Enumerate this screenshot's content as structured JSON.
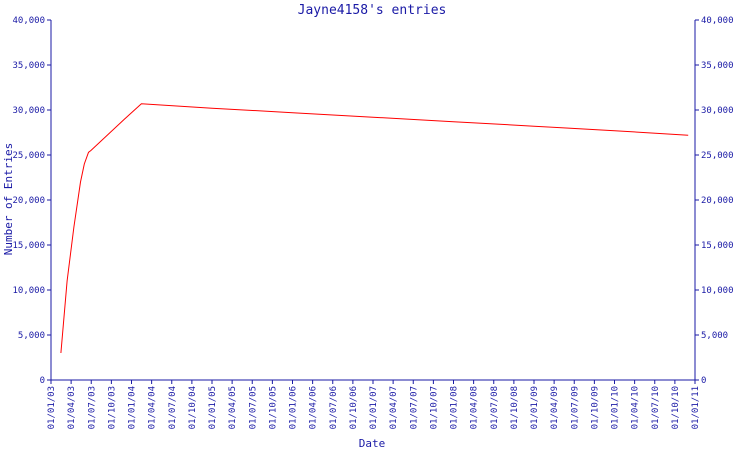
{
  "chart_data": {
    "type": "line",
    "title": "Jayne4158's entries",
    "xlabel": "Date",
    "ylabel": "Number of Entries",
    "ylim": [
      0,
      40000
    ],
    "y_ticks": [
      "0",
      "5,000",
      "10,000",
      "15,000",
      "20,000",
      "25,000",
      "30,000",
      "35,000",
      "40,000"
    ],
    "x_ticks": [
      "01/01/03",
      "01/04/03",
      "01/07/03",
      "01/10/03",
      "01/01/04",
      "01/04/04",
      "01/07/04",
      "01/10/04",
      "01/01/05",
      "01/04/05",
      "01/07/05",
      "01/10/05",
      "01/01/06",
      "01/04/06",
      "01/07/06",
      "01/10/06",
      "01/01/07",
      "01/04/07",
      "01/07/07",
      "01/10/07",
      "01/01/08",
      "01/04/08",
      "01/07/08",
      "01/10/08",
      "01/01/09",
      "01/04/09",
      "01/07/09",
      "01/10/09",
      "01/01/10",
      "01/04/10",
      "01/07/10",
      "01/10/10",
      "01/01/11"
    ],
    "x_range": [
      "2003-01-01",
      "2011-01-01"
    ],
    "grid": false,
    "line_color": "#ff0000",
    "axis_color": "#1a1aa6",
    "series": [
      {
        "x": [
          "2003-02-15",
          "2003-03-15",
          "2003-04-15",
          "2003-05-15",
          "2003-06-01",
          "2003-06-20",
          "2003-07-01",
          "2003-12-01",
          "2004-02-15",
          "2005-01-01",
          "2006-01-01",
          "2007-01-01",
          "2008-01-01",
          "2009-01-01",
          "2010-01-01",
          "2010-12-01"
        ],
        "y": [
          3000,
          11000,
          17000,
          22000,
          24000,
          25300,
          25500,
          29000,
          30700,
          30200,
          29700,
          29200,
          28700,
          28200,
          27700,
          27200
        ]
      }
    ]
  }
}
